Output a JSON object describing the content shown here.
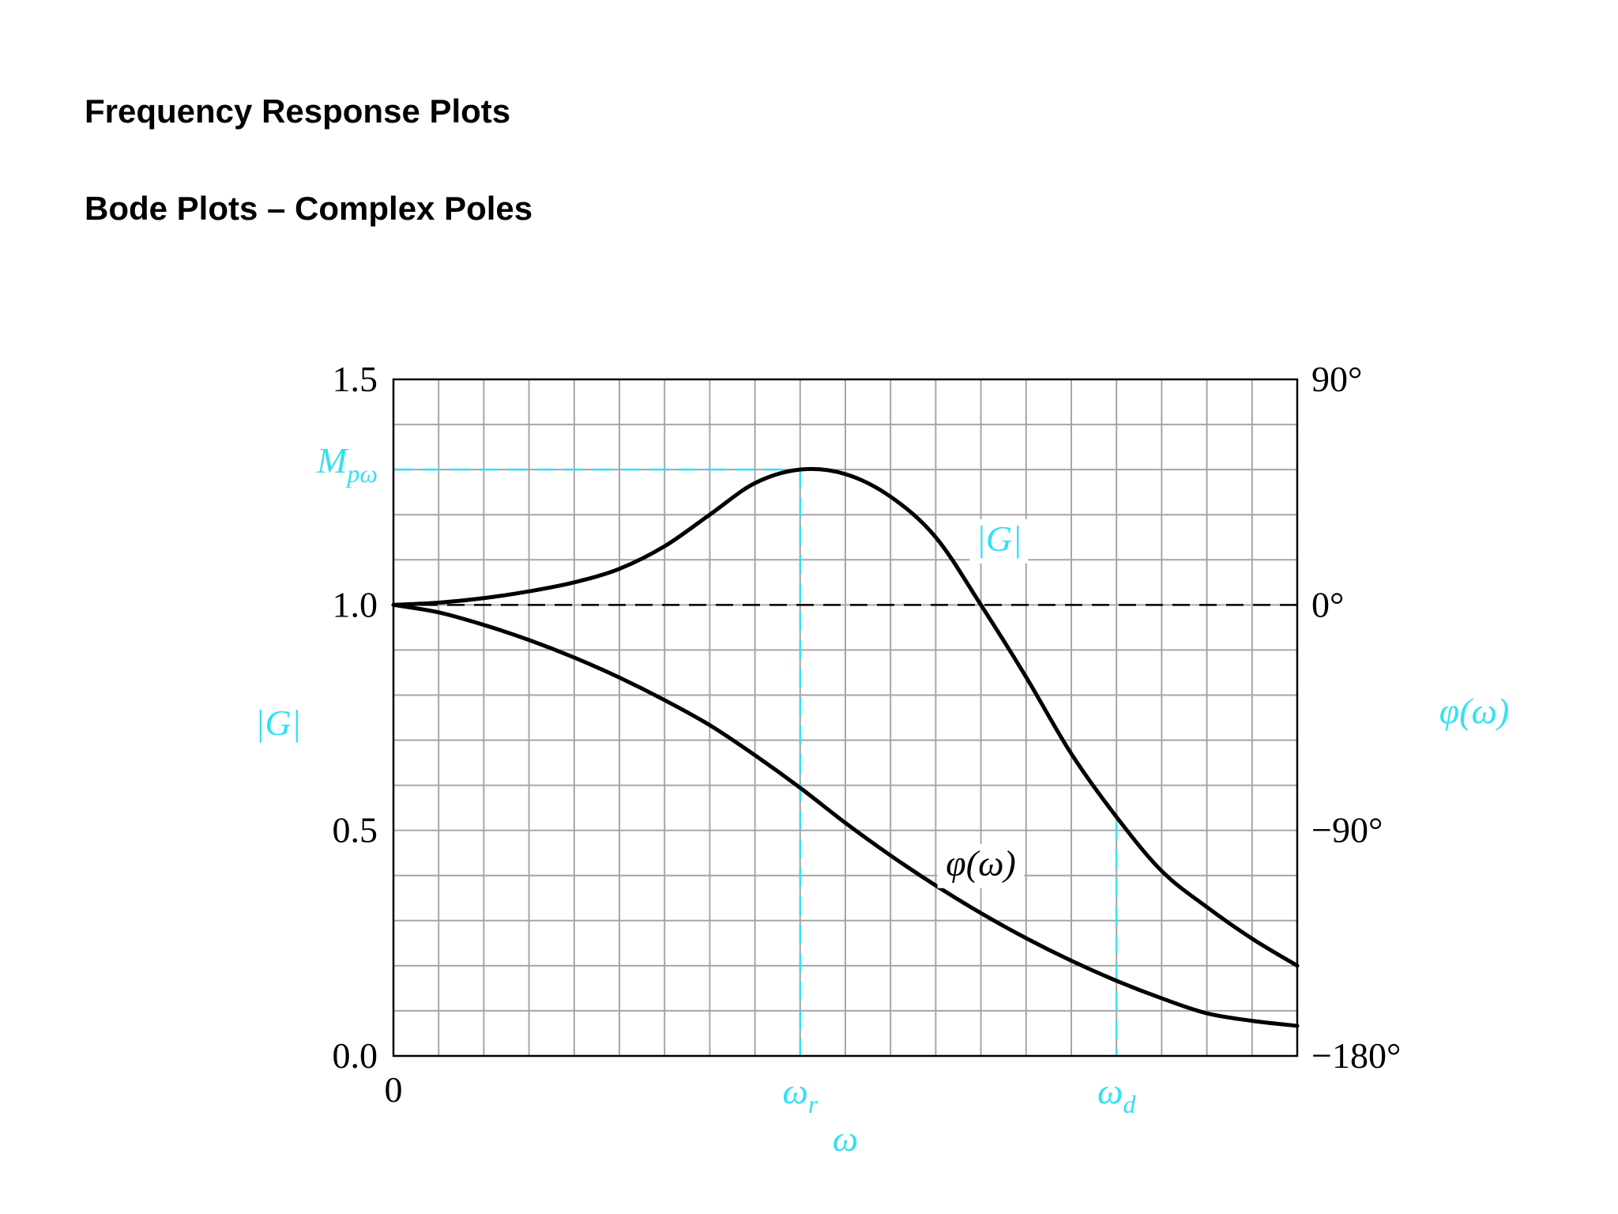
{
  "slide": {
    "title": "Frequency Response Plots",
    "subtitle": "Bode Plots – Complex Poles"
  },
  "chart_data": {
    "type": "line",
    "title": "",
    "xlabel": "ω",
    "ylabel_left": "|G|",
    "ylabel_right": "φ(ω)",
    "x_ticks": [
      {
        "label": "0",
        "value": 0,
        "highlight": false
      },
      {
        "label": "ωr",
        "value": 0.45,
        "highlight": true
      },
      {
        "label": "ωd",
        "value": 0.8,
        "highlight": true
      }
    ],
    "y_left": {
      "ylim": [
        0.0,
        1.5
      ],
      "ticks": [
        {
          "label": "1.5",
          "value": 1.5
        },
        {
          "label": "1.0",
          "value": 1.0
        },
        {
          "label": "0.5",
          "value": 0.5
        },
        {
          "label": "0.0",
          "value": 0.0
        }
      ]
    },
    "y_right": {
      "ylim": [
        -180,
        90
      ],
      "ticks": [
        {
          "label": "90°",
          "value": 90
        },
        {
          "label": "0°",
          "value": 0
        },
        {
          "label": "−90°",
          "value": -90
        },
        {
          "label": "−180°",
          "value": -180
        }
      ]
    },
    "x_range": [
      0,
      1
    ],
    "grid": true,
    "annotations": {
      "peak_label": "Mpω",
      "peak_value": 1.3,
      "resonant_freq": 0.45,
      "damped_freq": 0.8,
      "reference_line_value": 1.0
    },
    "series": [
      {
        "name": "|G|",
        "axis": "left",
        "label_at": [
          0.67,
          1.12
        ],
        "points": [
          [
            0.0,
            1.0
          ],
          [
            0.05,
            1.005
          ],
          [
            0.1,
            1.015
          ],
          [
            0.15,
            1.03
          ],
          [
            0.2,
            1.05
          ],
          [
            0.25,
            1.08
          ],
          [
            0.3,
            1.13
          ],
          [
            0.35,
            1.2
          ],
          [
            0.4,
            1.27
          ],
          [
            0.45,
            1.3
          ],
          [
            0.5,
            1.29
          ],
          [
            0.55,
            1.24
          ],
          [
            0.6,
            1.15
          ],
          [
            0.65,
            1.0
          ],
          [
            0.7,
            0.84
          ],
          [
            0.75,
            0.67
          ],
          [
            0.8,
            0.53
          ],
          [
            0.85,
            0.41
          ],
          [
            0.9,
            0.33
          ],
          [
            0.95,
            0.26
          ],
          [
            1.0,
            0.2
          ]
        ],
        "color": "#000000"
      },
      {
        "name": "φ(ω)",
        "axis": "right",
        "label_at": [
          0.65,
          -108
        ],
        "points": [
          [
            0.0,
            0
          ],
          [
            0.05,
            -3
          ],
          [
            0.1,
            -8
          ],
          [
            0.15,
            -14
          ],
          [
            0.2,
            -21
          ],
          [
            0.25,
            -29
          ],
          [
            0.3,
            -38
          ],
          [
            0.35,
            -48
          ],
          [
            0.4,
            -60
          ],
          [
            0.45,
            -73
          ],
          [
            0.5,
            -87
          ],
          [
            0.55,
            -100
          ],
          [
            0.6,
            -112
          ],
          [
            0.65,
            -123
          ],
          [
            0.7,
            -133
          ],
          [
            0.75,
            -142
          ],
          [
            0.8,
            -150
          ],
          [
            0.85,
            -157
          ],
          [
            0.9,
            -163
          ],
          [
            0.95,
            -166
          ],
          [
            1.0,
            -168
          ]
        ],
        "color": "#000000"
      }
    ]
  },
  "colors": {
    "accent_cyan": "#33e0f2",
    "grid": "#a6a6a6",
    "axis": "#000000",
    "curve": "#000000",
    "background": "#ffffff"
  }
}
